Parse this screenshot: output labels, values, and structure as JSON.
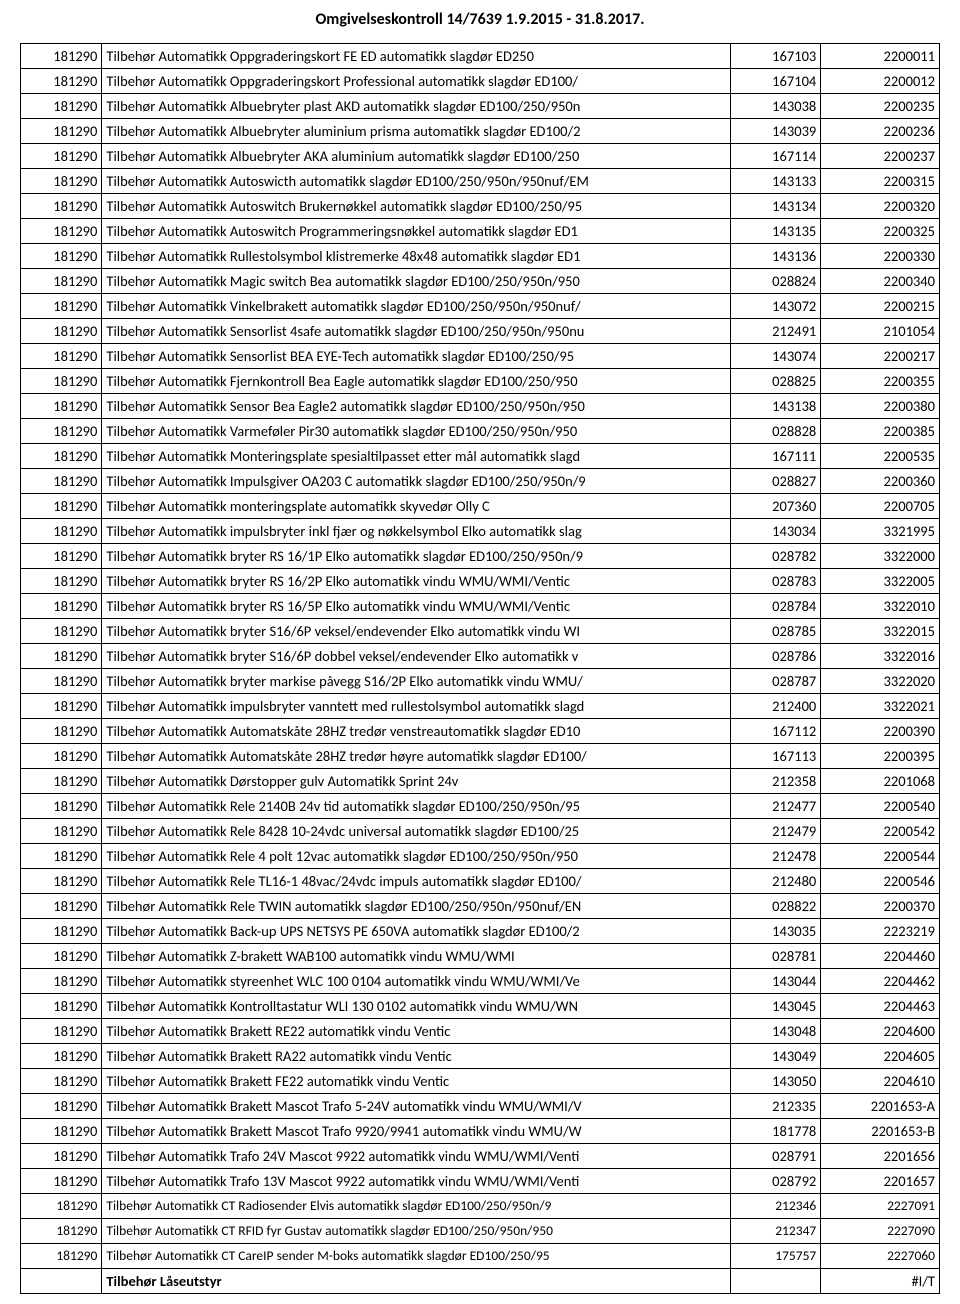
{
  "title": "Omgivelseskontroll 14/7639 1.9.2015 - 31.8.2017.",
  "rows": [
    {
      "c0": "181290",
      "c1": "Tilbehør Automatikk Oppgraderingskort FE ED automatikk slagdør ED250",
      "c2": "167103",
      "c3": "2200011"
    },
    {
      "c0": "181290",
      "c1": "Tilbehør Automatikk Oppgraderingskort Professional automatikk slagdør ED100/",
      "c2": "167104",
      "c3": "2200012"
    },
    {
      "c0": "181290",
      "c1": "Tilbehør Automatikk Albuebryter plast AKD automatikk slagdør ED100/250/950n",
      "c2": "143038",
      "c3": "2200235"
    },
    {
      "c0": "181290",
      "c1": "Tilbehør Automatikk Albuebryter aluminium prisma automatikk slagdør ED100/2",
      "c2": "143039",
      "c3": "2200236"
    },
    {
      "c0": "181290",
      "c1": "Tilbehør Automatikk Albuebryter AKA aluminium automatikk slagdør ED100/250",
      "c2": "167114",
      "c3": "2200237"
    },
    {
      "c0": "181290",
      "c1": "Tilbehør Automatikk Autoswicth automatikk slagdør ED100/250/950n/950nuf/EM",
      "c2": "143133",
      "c3": "2200315"
    },
    {
      "c0": "181290",
      "c1": "Tilbehør Automatikk Autoswitch Brukernøkkel automatikk slagdør ED100/250/95",
      "c2": "143134",
      "c3": "2200320"
    },
    {
      "c0": "181290",
      "c1": "Tilbehør Automatikk Autoswitch Programmeringsnøkkel automatikk slagdør ED1",
      "c2": "143135",
      "c3": "2200325"
    },
    {
      "c0": "181290",
      "c1": "Tilbehør Automatikk Rullestolsymbol klistremerke 48x48 automatikk slagdør ED1",
      "c2": "143136",
      "c3": "2200330"
    },
    {
      "c0": "181290",
      "c1": "Tilbehør Automatikk Magic switch Bea automatikk slagdør ED100/250/950n/950",
      "c2": "028824",
      "c3": "2200340"
    },
    {
      "c0": "181290",
      "c1": "Tilbehør Automatikk Vinkelbrakett automatikk slagdør ED100/250/950n/950nuf/",
      "c2": "143072",
      "c3": "2200215"
    },
    {
      "c0": "181290",
      "c1": "Tilbehør Automatikk Sensorlist 4safe automatikk slagdør ED100/250/950n/950nu",
      "c2": "212491",
      "c3": "2101054"
    },
    {
      "c0": "181290",
      "c1": "Tilbehør Automatikk Sensorlist  BEA EYE-Tech automatikk slagdør ED100/250/95",
      "c2": "143074",
      "c3": "2200217"
    },
    {
      "c0": "181290",
      "c1": "Tilbehør Automatikk Fjernkontroll Bea Eagle automatikk slagdør ED100/250/950",
      "c2": "028825",
      "c3": "2200355"
    },
    {
      "c0": "181290",
      "c1": "Tilbehør Automatikk Sensor Bea Eagle2 automatikk slagdør ED100/250/950n/950",
      "c2": "143138",
      "c3": "2200380"
    },
    {
      "c0": "181290",
      "c1": "Tilbehør Automatikk Varmeføler Pir30 automatikk slagdør ED100/250/950n/950",
      "c2": "028828",
      "c3": "2200385"
    },
    {
      "c0": "181290",
      "c1": "Tilbehør Automatikk Monteringsplate spesialtilpasset etter mål automatikk slagd",
      "c2": "167111",
      "c3": "2200535"
    },
    {
      "c0": "181290",
      "c1": "Tilbehør Automatikk Impulsgiver OA203 C automatikk slagdør ED100/250/950n/9",
      "c2": "028827",
      "c3": "2200360"
    },
    {
      "c0": "181290",
      "c1": "Tilbehør Automatikk monteringsplate automatikk skyvedør Olly C",
      "c2": "207360",
      "c3": "2200705"
    },
    {
      "c0": "181290",
      "c1": "Tilbehør Automatikk impulsbryter inkl fjær og nøkkelsymbol Elko automatikk slag",
      "c2": "143034",
      "c3": "3321995"
    },
    {
      "c0": "181290",
      "c1": "Tilbehør Automatikk bryter RS 16/1P Elko automatikk slagdør ED100/250/950n/9",
      "c2": "028782",
      "c3": "3322000"
    },
    {
      "c0": "181290",
      "c1": "Tilbehør Automatikk bryter RS 16/2P Elko automatikk vindu WMU/WMI/Ventic",
      "c2": "028783",
      "c3": "3322005"
    },
    {
      "c0": "181290",
      "c1": "Tilbehør Automatikk bryter RS 16/5P Elko automatikk vindu WMU/WMI/Ventic",
      "c2": "028784",
      "c3": "3322010"
    },
    {
      "c0": "181290",
      "c1": "Tilbehør Automatikk bryter S16/6P veksel/endevender Elko automatikk vindu WI",
      "c2": "028785",
      "c3": "3322015"
    },
    {
      "c0": "181290",
      "c1": "Tilbehør Automatikk bryter S16/6P dobbel veksel/endevender Elko automatikk v",
      "c2": "028786",
      "c3": "3322016"
    },
    {
      "c0": "181290",
      "c1": "Tilbehør Automatikk bryter markise påvegg S16/2P Elko automatikk vindu WMU/",
      "c2": "028787",
      "c3": "3322020"
    },
    {
      "c0": "181290",
      "c1": "Tilbehør Automatikk impulsbryter vanntett med rullestolsymbol automatikk slagd",
      "c2": "212400",
      "c3": "3322021"
    },
    {
      "c0": "181290",
      "c1": "Tilbehør Automatikk Automatskåte 28HZ tredør venstreautomatikk slagdør ED10",
      "c2": "167112",
      "c3": "2200390"
    },
    {
      "c0": "181290",
      "c1": "Tilbehør Automatikk Automatskåte 28HZ tredør høyre automatikk slagdør ED100/",
      "c2": "167113",
      "c3": "2200395"
    },
    {
      "c0": "181290",
      "c1": "Tilbehør Automatikk Dørstopper gulv Automatikk Sprint 24v",
      "c2": "212358",
      "c3": "2201068"
    },
    {
      "c0": "181290",
      "c1": "Tilbehør Automatikk Rele 2140B 24v tid automatikk slagdør ED100/250/950n/95",
      "c2": "212477",
      "c3": "2200540"
    },
    {
      "c0": "181290",
      "c1": "Tilbehør Automatikk Rele 8428 10-24vdc universal automatikk slagdør ED100/25",
      "c2": "212479",
      "c3": "2200542"
    },
    {
      "c0": "181290",
      "c1": "Tilbehør Automatikk Rele 4 polt 12vac automatikk slagdør ED100/250/950n/950",
      "c2": "212478",
      "c3": "2200544"
    },
    {
      "c0": "181290",
      "c1": "Tilbehør Automatikk Rele TL16-1 48vac/24vdc impuls automatikk slagdør ED100/",
      "c2": "212480",
      "c3": "2200546"
    },
    {
      "c0": "181290",
      "c1": "Tilbehør Automatikk Rele TWIN automatikk slagdør ED100/250/950n/950nuf/EN",
      "c2": "028822",
      "c3": "2200370"
    },
    {
      "c0": "181290",
      "c1": "Tilbehør Automatikk Back-up UPS NETSYS PE 650VA automatikk slagdør ED100/2",
      "c2": "143035",
      "c3": "2223219"
    },
    {
      "c0": "181290",
      "c1": "Tilbehør Automatikk  Z-brakett WAB100 automatikk vindu WMU/WMI",
      "c2": "028781",
      "c3": "2204460"
    },
    {
      "c0": "181290",
      "c1": "Tilbehør Automatikk styreenhet WLC 100 0104 automatikk vindu WMU/WMI/Ve",
      "c2": "143044",
      "c3": "2204462"
    },
    {
      "c0": "181290",
      "c1": "Tilbehør Automatikk Kontrolltastatur WLI 130  0102 automatikk vindu WMU/WN",
      "c2": "143045",
      "c3": "2204463"
    },
    {
      "c0": "181290",
      "c1": "Tilbehør Automatikk Brakett RE22 automatikk vindu Ventic",
      "c2": "143048",
      "c3": "2204600"
    },
    {
      "c0": "181290",
      "c1": "Tilbehør Automatikk Brakett RA22 automatikk vindu Ventic",
      "c2": "143049",
      "c3": "2204605"
    },
    {
      "c0": "181290",
      "c1": "Tilbehør Automatikk Brakett FE22 automatikk vindu Ventic",
      "c2": "143050",
      "c3": "2204610"
    },
    {
      "c0": "181290",
      "c1": "Tilbehør Automatikk Brakett Mascot Trafo 5-24V automatikk vindu WMU/WMI/V",
      "c2": "212335",
      "c3": "2201653-A"
    },
    {
      "c0": "181290",
      "c1": "Tilbehør Automatikk Brakett Mascot Trafo 9920/9941 automatikk vindu WMU/W",
      "c2": "181778",
      "c3": "2201653-B"
    },
    {
      "c0": "181290",
      "c1": "Tilbehør Automatikk Trafo 24V Mascot 9922 automatikk vindu WMU/WMI/Venti",
      "c2": "028791",
      "c3": "2201656"
    },
    {
      "c0": "181290",
      "c1": "Tilbehør Automatikk Trafo 13V Mascot 9922 automatikk vindu WMU/WMI/Venti",
      "c2": "028792",
      "c3": "2201657"
    },
    {
      "c0": "181290",
      "c1": "Tilbehør Automatikk CT Radiosender Elvis automatikk slagdør ED100/250/950n/9",
      "c2": "212346",
      "c3": "2227091",
      "dense": true
    },
    {
      "c0": "181290",
      "c1": "Tilbehør Automatikk CT RFID fyr Gustav automatikk slagdør ED100/250/950n/950",
      "c2": "212347",
      "c3": "2227090",
      "dense": true
    },
    {
      "c0": "181290",
      "c1": "Tilbehør Automatikk CT CareIP sender M-boks automatikk slagdør ED100/250/95",
      "c2": "175757",
      "c3": "2227060",
      "dense": true
    },
    {
      "c0": "",
      "c1": "Tilbehør Låseutstyr",
      "c2": "",
      "c3": "#I/T",
      "bold": true
    }
  ]
}
